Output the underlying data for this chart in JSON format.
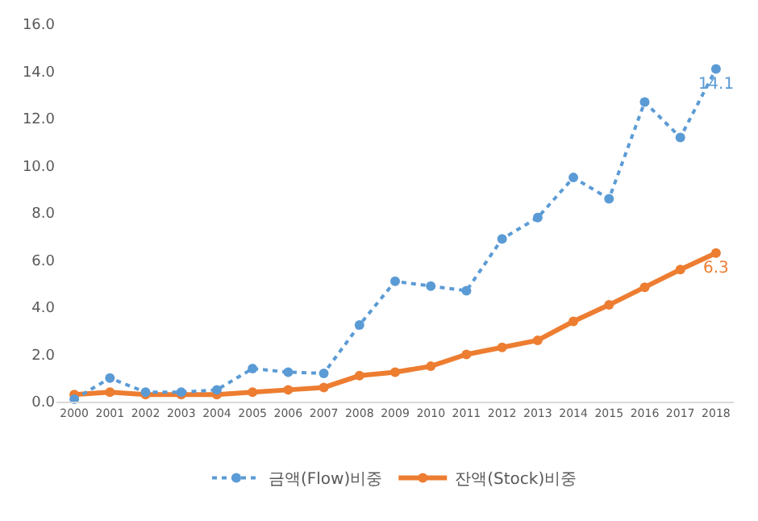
{
  "chart_data": {
    "type": "line",
    "categories": [
      "2000",
      "2001",
      "2002",
      "2003",
      "2004",
      "2005",
      "2006",
      "2007",
      "2008",
      "2009",
      "2010",
      "2011",
      "2012",
      "2013",
      "2014",
      "2015",
      "2016",
      "2017",
      "2018"
    ],
    "series": [
      {
        "name": "금액(Flow)비중",
        "color": "#5b9bd5",
        "line_style": "dotted",
        "marker": "circle",
        "values": [
          0.1,
          1.0,
          0.4,
          0.4,
          0.5,
          1.4,
          1.25,
          1.2,
          3.25,
          5.1,
          4.9,
          4.7,
          6.9,
          7.8,
          9.5,
          8.6,
          12.7,
          11.2,
          14.1
        ],
        "value_labels": [
          null,
          null,
          null,
          null,
          null,
          null,
          null,
          null,
          null,
          null,
          null,
          null,
          null,
          null,
          null,
          null,
          null,
          null,
          "14.1"
        ]
      },
      {
        "name": "잔액(Stock)비중",
        "color": "#ed7d31",
        "line_style": "solid",
        "marker": "circle",
        "values": [
          0.3,
          0.4,
          0.3,
          0.3,
          0.3,
          0.4,
          0.5,
          0.6,
          1.1,
          1.25,
          1.5,
          2.0,
          2.3,
          2.6,
          3.4,
          4.1,
          4.85,
          5.6,
          6.3
        ],
        "value_labels": [
          null,
          null,
          null,
          null,
          null,
          null,
          null,
          null,
          null,
          null,
          null,
          null,
          null,
          null,
          null,
          null,
          null,
          null,
          "6.3"
        ]
      }
    ],
    "ylim": [
      0,
      16
    ],
    "yticks": [
      {
        "value": 0,
        "label": "0.0"
      },
      {
        "value": 2,
        "label": "2.0"
      },
      {
        "value": 4,
        "label": "4.0"
      },
      {
        "value": 6,
        "label": "6.0"
      },
      {
        "value": 8,
        "label": "8.0"
      },
      {
        "value": 10,
        "label": "10.0"
      },
      {
        "value": 12,
        "label": "12.0"
      },
      {
        "value": 14,
        "label": "14.0"
      },
      {
        "value": 16,
        "label": "16.0"
      }
    ],
    "grid": false,
    "legend": "bottom"
  }
}
